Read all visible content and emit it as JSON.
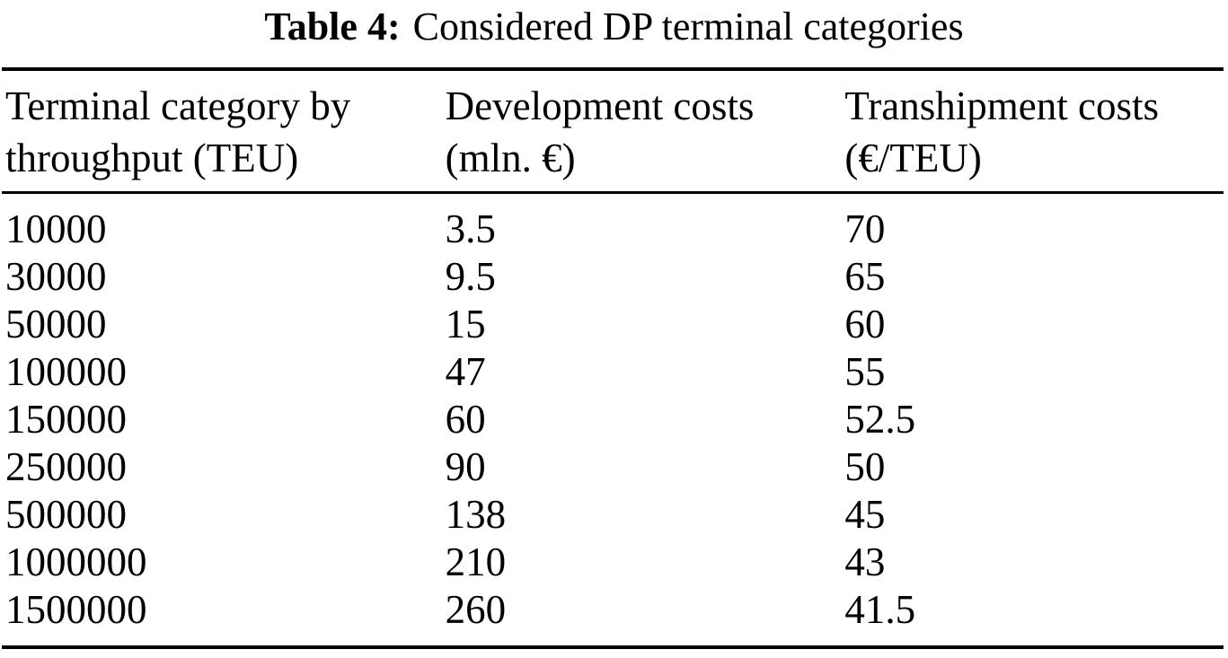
{
  "caption": {
    "label": "Table 4:",
    "text": "Considered DP terminal categories"
  },
  "table": {
    "columns": [
      {
        "line1": "Terminal category by",
        "line2": "throughput (TEU)"
      },
      {
        "line1": "Development costs",
        "line2": "(mln. €)"
      },
      {
        "line1": "Transhipment costs",
        "line2": "(€/TEU)"
      }
    ],
    "rows": [
      [
        "10000",
        "3.5",
        "70"
      ],
      [
        "30000",
        "9.5",
        "65"
      ],
      [
        "50000",
        "15",
        "60"
      ],
      [
        "100000",
        "47",
        "55"
      ],
      [
        "150000",
        "60",
        "52.5"
      ],
      [
        "250000",
        "90",
        "50"
      ],
      [
        "500000",
        "138",
        "45"
      ],
      [
        "1000000",
        "210",
        "43"
      ],
      [
        "1500000",
        "260",
        "41.5"
      ]
    ]
  },
  "colors": {
    "text": "#000000",
    "background": "#ffffff",
    "rule": "#000000"
  }
}
